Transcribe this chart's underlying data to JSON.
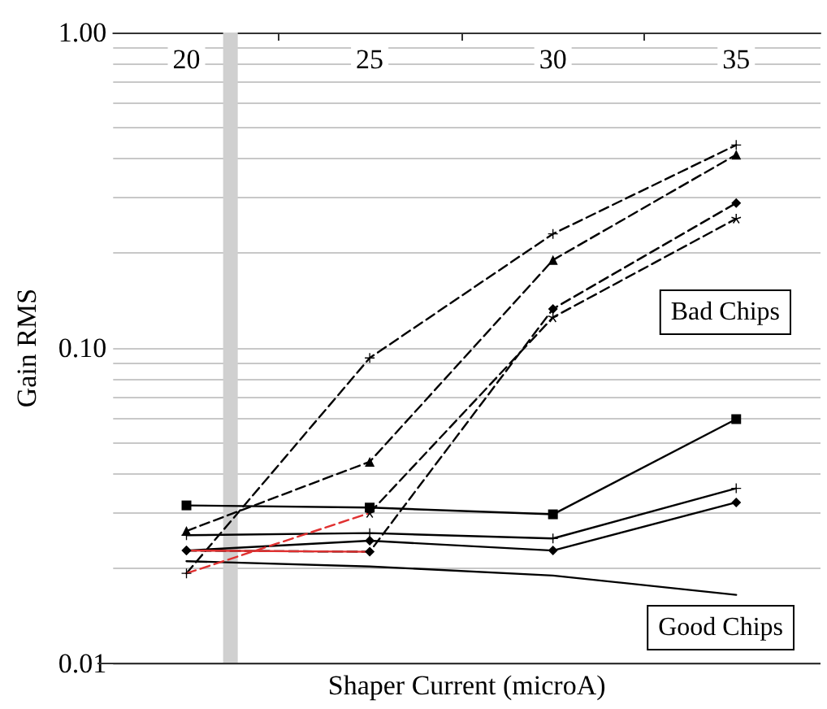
{
  "chart_data": {
    "type": "line",
    "xlabel": "Shaper Current (microA)",
    "ylabel": "Gain RMS",
    "x": [
      20,
      25,
      30,
      35
    ],
    "xlim": [
      18,
      37.3
    ],
    "xticks": [
      20,
      {
        "value": 22.5,
        "label": null
      },
      25,
      {
        "value": 27.5,
        "label": null
      },
      30,
      {
        "value": 32.5,
        "label": null
      },
      35
    ],
    "ylim": [
      0.01,
      1
    ],
    "yticks": [
      {
        "value": 0.01,
        "label": "0.01"
      },
      {
        "value": 0.02,
        "label": null
      },
      {
        "value": 0.03,
        "label": null
      },
      {
        "value": 0.04,
        "label": null
      },
      {
        "value": 0.05,
        "label": null
      },
      {
        "value": 0.06,
        "label": null
      },
      {
        "value": 0.07,
        "label": null
      },
      {
        "value": 0.08,
        "label": null
      },
      {
        "value": 0.09,
        "label": null
      },
      {
        "value": 0.1,
        "label": "0.10"
      },
      {
        "value": 0.2,
        "label": null
      },
      {
        "value": 0.3,
        "label": null
      },
      {
        "value": 0.4,
        "label": null
      },
      {
        "value": 0.5,
        "label": null
      },
      {
        "value": 0.6,
        "label": null
      },
      {
        "value": 0.7,
        "label": null
      },
      {
        "value": 0.8,
        "label": null
      },
      {
        "value": 0.9,
        "label": null
      },
      {
        "value": 1,
        "label": "1.00"
      }
    ],
    "log": "y",
    "grid": "y",
    "bands": [
      {
        "axis": "x",
        "from": 21.0,
        "to": 21.4,
        "color": "#d0d0d0"
      }
    ],
    "annotations": [
      "Bad Chips",
      "Good Chips"
    ],
    "series": [
      {
        "color": "#000000",
        "marker": "square",
        "line_style": "solid",
        "values": [
          0.0317,
          0.0312,
          0.0297,
          0.0595
        ]
      },
      {
        "color": "#000000",
        "marker": "cross",
        "line_style": "solid",
        "values": [
          0.0255,
          0.0259,
          0.0249,
          0.0359
        ]
      },
      {
        "color": "#000000",
        "marker": "diamond",
        "line_style": "solid",
        "values": [
          0.0228,
          0.0245,
          0.0228,
          0.0324
        ]
      },
      {
        "color": "#000000",
        "marker": "none",
        "line_style": "solid",
        "values": [
          0.0211,
          0.0203,
          0.019,
          0.0165
        ]
      },
      {
        "color": "#000000",
        "marker": "cross",
        "line_style": "dashed",
        "values": [
          0.0193,
          0.093,
          0.23,
          0.44
        ]
      },
      {
        "color": "#000000",
        "marker": "triangle",
        "line_style": "dashed",
        "values": [
          0.0263,
          0.0436,
          0.19,
          0.41
        ]
      },
      {
        "color": "#000000",
        "marker": "diamond",
        "line_style": "dashed",
        "values": [
          0.0228,
          0.0226,
          0.133,
          0.288
        ]
      },
      {
        "color": "#000000",
        "marker": "star",
        "line_style": "dashed",
        "values": [
          null,
          0.03,
          0.125,
          0.257
        ]
      },
      {
        "color": "#e03030",
        "marker": "none",
        "line_style": "dashed",
        "values": [
          0.0193,
          0.03,
          null,
          null
        ]
      },
      {
        "color": "#e03030",
        "marker": "none",
        "line_style": "solid",
        "values": [
          0.0228,
          0.0226,
          null,
          null
        ]
      }
    ]
  }
}
